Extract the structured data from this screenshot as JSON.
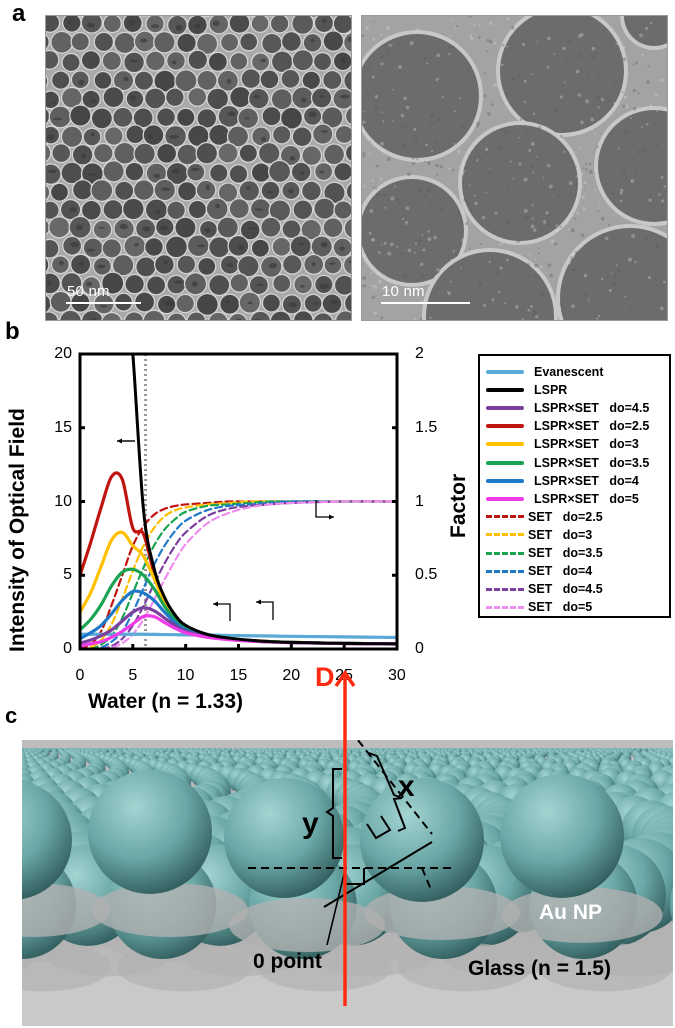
{
  "figure": {
    "panels": {
      "a": {
        "label": "a",
        "images": [
          {
            "description": "TEM image of Au nanoparticle monolayer (low magnification)",
            "scale_bar": "50 nm"
          },
          {
            "description": "HRTEM image of Au nanoparticles (high magnification)",
            "scale_bar": "10 nm"
          }
        ]
      },
      "b": {
        "label": "b",
        "y_left_title": "Intensity of Optical Field",
        "y_right_title": "Factor",
        "y_left_ticks": [
          "0",
          "5",
          "10",
          "15",
          "20"
        ],
        "y_right_ticks": [
          "0",
          "0.5",
          "1",
          "1.5",
          "2"
        ],
        "x_ticks": [
          "0",
          "5",
          "10",
          "15",
          "20",
          "25",
          "30"
        ],
        "legend": [
          {
            "label": "Evanescent",
            "style": "solid",
            "color": "#5aa9d6"
          },
          {
            "label": "LSPR",
            "style": "solid",
            "color": "#000000"
          },
          {
            "label": "LSPR×SET   do=4.5",
            "style": "solid",
            "color": "#7b3fa0"
          },
          {
            "label": "LSPR×SET   do=2.5",
            "style": "solid",
            "color": "#c0150f"
          },
          {
            "label": "LSPR×SET   do=3",
            "style": "solid",
            "color": "#ffc000"
          },
          {
            "label": "LSPR×SET   do=3.5",
            "style": "solid",
            "color": "#1aa452"
          },
          {
            "label": "LSPR×SET   do=4",
            "style": "solid",
            "color": "#1f78c8"
          },
          {
            "label": "LSPR×SET   do=5",
            "style": "solid",
            "color": "#f03ce8"
          },
          {
            "label": "SET   do=2.5",
            "style": "dashed",
            "color": "#c0150f"
          },
          {
            "label": "SET   do=3",
            "style": "dashed",
            "color": "#ffc000"
          },
          {
            "label": "SET   do=3.5",
            "style": "dashed",
            "color": "#1aa452"
          },
          {
            "label": "SET   do=4",
            "style": "dashed",
            "color": "#1f78c8"
          },
          {
            "label": "SET   do=4.5",
            "style": "dashed",
            "color": "#7b3fa0"
          },
          {
            "label": "SET   do=5",
            "style": "dashed",
            "color": "#f08cf0"
          }
        ]
      },
      "c": {
        "label": "c",
        "labels": {
          "water": "Water (n = 1.33)",
          "glass": "Glass (n = 1.5)",
          "np": "Au NP",
          "zero": "0 point",
          "d": "D",
          "x": "x",
          "y": "y"
        },
        "colors": {
          "arrow": "#ff2a10",
          "sphere": "#6aa7a6",
          "substrate": "#c9c9c9"
        }
      }
    }
  },
  "chart_data": {
    "type": "line",
    "title": "",
    "xlabel": "",
    "ylabel": "Intensity of Optical Field",
    "y2label": "Factor",
    "xlim": [
      0,
      30
    ],
    "ylim": [
      0,
      20
    ],
    "y2lim": [
      0,
      2
    ],
    "grid": false,
    "legend_position": "right, outside",
    "vertical_reference_line": {
      "x": 6.2,
      "style": "dotted",
      "color": "#999999"
    },
    "x": [
      0,
      1,
      2,
      3,
      4,
      5,
      6,
      7,
      8,
      9,
      10,
      12,
      14,
      16,
      18,
      20,
      25,
      30
    ],
    "series": [
      {
        "name": "Evanescent",
        "axis": "left",
        "style": "solid",
        "values": [
          1.0,
          1.0,
          1.0,
          1.0,
          1.0,
          1.0,
          1.0,
          0.99,
          0.98,
          0.97,
          0.96,
          0.94,
          0.92,
          0.9,
          0.88,
          0.86,
          0.82,
          0.78
        ]
      },
      {
        "name": "LSPR",
        "axis": "left",
        "style": "solid",
        "values": [
          null,
          null,
          null,
          null,
          null,
          20.0,
          9.5,
          5.5,
          3.5,
          2.3,
          1.6,
          1.0,
          0.75,
          0.6,
          0.5,
          0.45,
          0.38,
          0.35
        ]
      },
      {
        "name": "LSPR×SET do=2.5",
        "axis": "left",
        "style": "solid",
        "values": [
          5.0,
          7.2,
          9.6,
          11.7,
          11.5,
          8.2,
          7.8,
          5.2,
          3.3,
          2.2,
          1.5,
          0.95,
          0.72,
          0.58,
          0.5,
          0.45,
          0.38,
          0.35
        ]
      },
      {
        "name": "LSPR×SET do=3",
        "axis": "left",
        "style": "solid",
        "values": [
          2.5,
          3.8,
          5.6,
          7.4,
          7.9,
          7.0,
          6.3,
          4.8,
          3.2,
          2.1,
          1.5,
          0.95,
          0.72,
          0.58,
          0.5,
          0.45,
          0.38,
          0.35
        ]
      },
      {
        "name": "LSPR×SET do=3.5",
        "axis": "left",
        "style": "solid",
        "values": [
          1.3,
          2.0,
          3.0,
          4.3,
          5.2,
          5.4,
          5.0,
          4.1,
          2.9,
          2.0,
          1.4,
          0.93,
          0.7,
          0.57,
          0.5,
          0.45,
          0.38,
          0.35
        ]
      },
      {
        "name": "LSPR×SET do=4",
        "axis": "left",
        "style": "solid",
        "values": [
          0.7,
          1.1,
          1.6,
          2.4,
          3.3,
          3.9,
          3.8,
          3.3,
          2.5,
          1.8,
          1.3,
          0.9,
          0.68,
          0.56,
          0.49,
          0.44,
          0.38,
          0.35
        ]
      },
      {
        "name": "LSPR×SET do=4.5",
        "axis": "left",
        "style": "solid",
        "values": [
          0.4,
          0.6,
          0.9,
          1.3,
          1.9,
          2.5,
          2.8,
          2.6,
          2.1,
          1.6,
          1.2,
          0.85,
          0.66,
          0.55,
          0.48,
          0.44,
          0.38,
          0.35
        ]
      },
      {
        "name": "LSPR×SET do=5",
        "axis": "left",
        "style": "solid",
        "values": [
          0.2,
          0.35,
          0.5,
          0.8,
          1.2,
          1.7,
          2.2,
          2.2,
          1.8,
          1.4,
          1.1,
          0.8,
          0.64,
          0.54,
          0.47,
          0.43,
          0.37,
          0.34
        ]
      },
      {
        "name": "SET do=2.5",
        "axis": "right",
        "style": "dashed",
        "values": [
          0.01,
          0.03,
          0.12,
          0.3,
          0.5,
          0.7,
          0.83,
          0.91,
          0.95,
          0.97,
          0.98,
          0.99,
          1.0,
          1.0,
          1.0,
          1.0,
          1.0,
          1.0
        ]
      },
      {
        "name": "SET do=3",
        "axis": "right",
        "style": "dashed",
        "values": [
          0.0,
          0.01,
          0.06,
          0.17,
          0.34,
          0.53,
          0.7,
          0.82,
          0.9,
          0.94,
          0.96,
          0.98,
          0.99,
          1.0,
          1.0,
          1.0,
          1.0,
          1.0
        ]
      },
      {
        "name": "SET do=3.5",
        "axis": "right",
        "style": "dashed",
        "values": [
          0.0,
          0.0,
          0.03,
          0.09,
          0.21,
          0.38,
          0.55,
          0.7,
          0.81,
          0.88,
          0.93,
          0.97,
          0.98,
          0.99,
          1.0,
          1.0,
          1.0,
          1.0
        ]
      },
      {
        "name": "SET do=4",
        "axis": "right",
        "style": "dashed",
        "values": [
          0.0,
          0.0,
          0.01,
          0.05,
          0.12,
          0.25,
          0.41,
          0.57,
          0.7,
          0.8,
          0.87,
          0.94,
          0.97,
          0.98,
          0.99,
          1.0,
          1.0,
          1.0
        ]
      },
      {
        "name": "SET do=4.5",
        "axis": "right",
        "style": "dashed",
        "values": [
          0.0,
          0.0,
          0.0,
          0.02,
          0.07,
          0.16,
          0.29,
          0.44,
          0.58,
          0.7,
          0.79,
          0.9,
          0.95,
          0.97,
          0.98,
          0.99,
          1.0,
          1.0
        ]
      },
      {
        "name": "SET do=5",
        "axis": "right",
        "style": "dashed",
        "values": [
          0.0,
          0.0,
          0.0,
          0.01,
          0.04,
          0.1,
          0.2,
          0.33,
          0.47,
          0.6,
          0.71,
          0.85,
          0.92,
          0.96,
          0.98,
          0.99,
          1.0,
          1.0
        ]
      }
    ],
    "annotations": [
      {
        "type": "arrow-left",
        "near": "LSPR curve",
        "meaning": "left axis"
      },
      {
        "type": "arrow-right",
        "near": "SET curves at factor 1",
        "meaning": "right axis"
      },
      {
        "type": "arrow-left",
        "near": "LSPR×SET tails at x≈14",
        "meaning": "left axis"
      },
      {
        "type": "arrow-left",
        "near": "Evanescent at x≈18",
        "meaning": "left axis"
      }
    ]
  }
}
